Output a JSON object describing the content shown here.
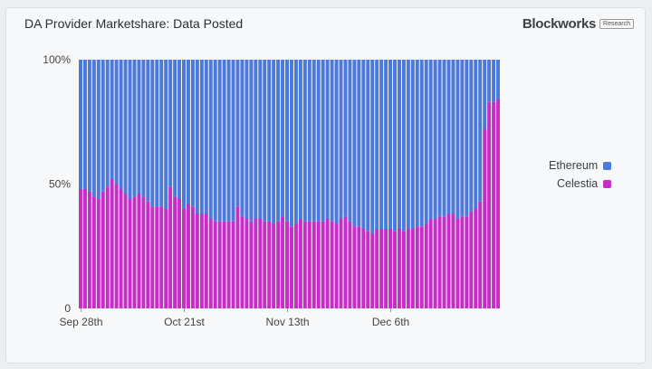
{
  "chart_title": "DA Provider Marketshare: Data Posted",
  "brand": {
    "name": "Blockworks",
    "tag": "Research"
  },
  "legend": [
    {
      "label": "Ethereum",
      "color": "#4d79db"
    },
    {
      "label": "Celestia",
      "color": "#c62fc6"
    }
  ],
  "chart_data": {
    "type": "bar",
    "stacked": true,
    "normalized_percent": true,
    "x_tick_labels": [
      "Sep 28th",
      "Oct 21st",
      "Nov 13th",
      "Dec 6th"
    ],
    "x_tick_indices": [
      0,
      23,
      46,
      69
    ],
    "y_tick_labels": [
      "0",
      "50%",
      "100%"
    ],
    "ylim": [
      0,
      100
    ],
    "series": [
      {
        "name": "Celestia",
        "color": "#c62fc6",
        "values": [
          48,
          48,
          47,
          45,
          44,
          47,
          49,
          52,
          50,
          48,
          46,
          44,
          45,
          46,
          45,
          43,
          41,
          41,
          41,
          40,
          49,
          45,
          44,
          40,
          42,
          41,
          38,
          38,
          38,
          36,
          35,
          35,
          35,
          35,
          35,
          41,
          37,
          36,
          35,
          36,
          36,
          35,
          35,
          34,
          35,
          37,
          35,
          33,
          34,
          36,
          35,
          35,
          35,
          35,
          35,
          36,
          35,
          34,
          36,
          37,
          35,
          33,
          33,
          32,
          31,
          30,
          32,
          32,
          32,
          32,
          31,
          32,
          31,
          32,
          32,
          33,
          33,
          34,
          36,
          36,
          37,
          37,
          38,
          38,
          36,
          37,
          37,
          39,
          40,
          43,
          72,
          83,
          83,
          84
        ]
      },
      {
        "name": "Ethereum",
        "color": "#4d79db",
        "values": [
          52,
          52,
          53,
          55,
          56,
          53,
          51,
          48,
          50,
          52,
          54,
          56,
          55,
          54,
          55,
          57,
          59,
          59,
          59,
          60,
          51,
          55,
          56,
          60,
          58,
          59,
          62,
          62,
          62,
          64,
          65,
          65,
          65,
          65,
          65,
          59,
          63,
          64,
          65,
          64,
          64,
          65,
          65,
          66,
          65,
          63,
          65,
          67,
          66,
          64,
          65,
          65,
          65,
          65,
          65,
          64,
          65,
          66,
          64,
          63,
          65,
          67,
          67,
          68,
          69,
          70,
          68,
          68,
          68,
          68,
          69,
          68,
          69,
          68,
          68,
          67,
          67,
          66,
          64,
          64,
          63,
          63,
          62,
          62,
          64,
          63,
          63,
          61,
          60,
          57,
          28,
          17,
          17,
          16
        ]
      }
    ]
  }
}
